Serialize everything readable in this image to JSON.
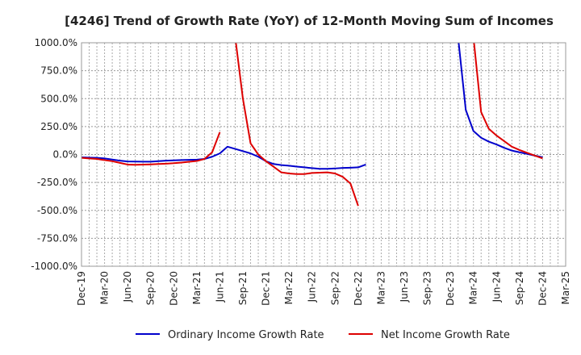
{
  "chart_data": {
    "type": "line",
    "title": "[4246]  Trend of Growth Rate (YoY) of 12-Month Moving Sum of Incomes",
    "xlabel": "",
    "ylabel": "",
    "ylim": [
      -1000,
      1000
    ],
    "yticks": [
      1000,
      750,
      500,
      250,
      0,
      -250,
      -500,
      -750,
      -1000
    ],
    "ytick_labels": [
      "1000.0%",
      "750.0%",
      "500.0%",
      "250.0%",
      "0.0%",
      "-250.0%",
      "-500.0%",
      "-750.0%",
      "-1000.0%"
    ],
    "x_tick_labels": [
      "Dec-19",
      "Mar-20",
      "Jun-20",
      "Sep-20",
      "Dec-20",
      "Mar-21",
      "Jun-21",
      "Sep-21",
      "Dec-21",
      "Mar-22",
      "Jun-22",
      "Sep-22",
      "Dec-22",
      "Mar-23",
      "Jun-23",
      "Sep-23",
      "Dec-23",
      "Mar-24",
      "Jun-24",
      "Sep-24",
      "Dec-24",
      "Mar-25"
    ],
    "x_months": [
      "Dec-19",
      "Jan-20",
      "Feb-20",
      "Mar-20",
      "Apr-20",
      "May-20",
      "Jun-20",
      "Jul-20",
      "Aug-20",
      "Sep-20",
      "Oct-20",
      "Nov-20",
      "Dec-20",
      "Jan-21",
      "Feb-21",
      "Mar-21",
      "Apr-21",
      "May-21",
      "Jun-21",
      "Jul-21",
      "Aug-21",
      "Sep-21",
      "Oct-21",
      "Nov-21",
      "Dec-21",
      "Jan-22",
      "Feb-22",
      "Mar-22",
      "Apr-22",
      "May-22",
      "Jun-22",
      "Jul-22",
      "Aug-22",
      "Sep-22",
      "Oct-22",
      "Nov-22",
      "Dec-22",
      "Jan-23",
      "Feb-23",
      "Mar-23",
      "Apr-23",
      "May-23",
      "Jun-23",
      "Jul-23",
      "Aug-23",
      "Sep-23",
      "Oct-23",
      "Nov-23",
      "Dec-23",
      "Jan-24",
      "Feb-24",
      "Mar-24",
      "Apr-24",
      "May-24",
      "Jun-24",
      "Jul-24",
      "Aug-24",
      "Sep-24",
      "Oct-24",
      "Nov-24",
      "Dec-24",
      "Jan-25",
      "Feb-25",
      "Mar-25"
    ],
    "grid": true,
    "legend_position": "bottom",
    "series": [
      {
        "name": "Ordinary Income Growth Rate",
        "color": "#0000cc",
        "values": [
          -25,
          -28,
          -30,
          -35,
          -45,
          -55,
          -62,
          -63,
          -64,
          -64,
          -60,
          -55,
          -52,
          -50,
          -48,
          -46,
          -40,
          -20,
          10,
          70,
          50,
          30,
          10,
          -20,
          -60,
          -85,
          -95,
          -100,
          -108,
          -115,
          -122,
          -128,
          -128,
          -125,
          -120,
          -118,
          -115,
          -90,
          null,
          null,
          null,
          null,
          null,
          null,
          null,
          null,
          null,
          null,
          null,
          1050,
          400,
          210,
          150,
          115,
          90,
          60,
          35,
          20,
          5,
          -10,
          -25,
          null,
          null,
          null
        ]
      },
      {
        "name": "Net Income Growth Rate",
        "color": "#dd0000",
        "values": [
          -30,
          -35,
          -40,
          -50,
          -60,
          -75,
          -90,
          -92,
          -90,
          -88,
          -85,
          -82,
          -78,
          -72,
          -65,
          -58,
          -40,
          20,
          200,
          null,
          1050,
          500,
          100,
          0,
          -60,
          -110,
          -160,
          -170,
          -175,
          -175,
          -165,
          -162,
          -160,
          -170,
          -200,
          -260,
          -460,
          null,
          null,
          null,
          null,
          null,
          null,
          null,
          null,
          null,
          null,
          null,
          null,
          null,
          null,
          1050,
          380,
          230,
          170,
          120,
          70,
          40,
          15,
          -10,
          -35,
          null,
          null,
          null
        ]
      }
    ]
  }
}
